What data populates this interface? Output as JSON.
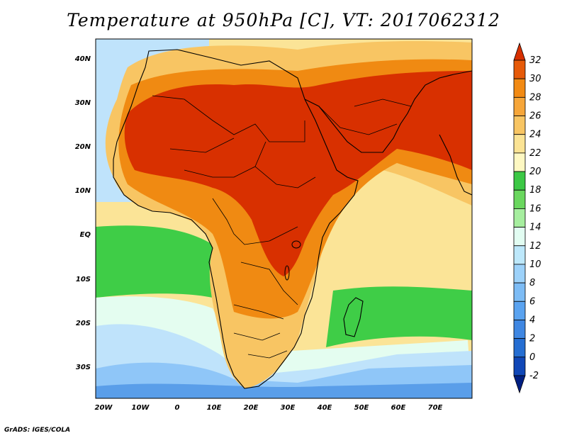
{
  "title": "Temperature at 950hPa [C], VT: 2017062312",
  "credit": "GrADS: IGES/COLA",
  "lon_labels": [
    "20W",
    "10W",
    "0",
    "10E",
    "20E",
    "30E",
    "40E",
    "50E",
    "60E",
    "70E"
  ],
  "lat_labels": [
    "40N",
    "30N",
    "20N",
    "10N",
    "EQ",
    "10S",
    "20S",
    "30S"
  ],
  "colorbar": {
    "levels": [
      "32",
      "30",
      "28",
      "26",
      "24",
      "22",
      "20",
      "18",
      "16",
      "14",
      "12",
      "10",
      "8",
      "6",
      "4",
      "2",
      "0",
      "-2"
    ],
    "colors": [
      "#d73000",
      "#e65a08",
      "#f28a13",
      "#f6a63a",
      "#f8c563",
      "#fbe394",
      "#fef8c2",
      "#3cc845",
      "#6ad75e",
      "#a6ee9f",
      "#e2fdf2",
      "#bde8fb",
      "#9dd2fa",
      "#7dbcf5",
      "#5aa3f0",
      "#3f87e2",
      "#256ed2",
      "#1047b7",
      "#001f82"
    ]
  },
  "map_colors": {
    "ocean_cold": "#5a9ee9",
    "ocean_cool": "#8fc6f8",
    "ocean_mild": "#bfe3fb",
    "ocean_warm": "#e4fdf0",
    "tropical_ocean": "#fbe497",
    "green_band": "#3fcd47",
    "land_hot": "#d83000",
    "land_warm": "#f08a12",
    "land_mild": "#f8c563"
  }
}
